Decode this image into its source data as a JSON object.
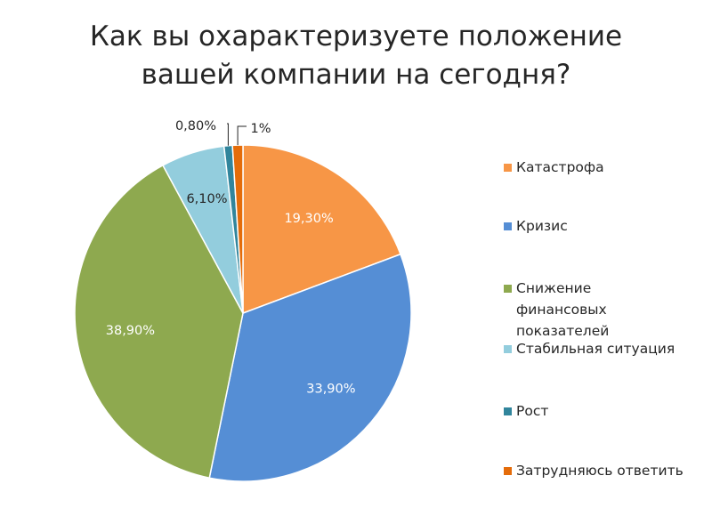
{
  "title_lines": [
    "Как вы охарактеризуете положение",
    "вашей компании на сегодня?"
  ],
  "chart_data": {
    "type": "pie",
    "title": "Как вы охарактеризуете положение вашей компании на сегодня?",
    "categories": [
      "Катастрофа",
      "Кризис",
      "Снижение финансовых показателей",
      "Стабильная ситуация",
      "Рост",
      "Затрудняюсь ответить"
    ],
    "values": [
      19.3,
      33.9,
      38.9,
      6.1,
      0.8,
      1.0
    ],
    "data_labels": [
      "19,30%",
      "33,90%",
      "38,90%",
      "6,10%",
      "0,80%",
      "1%"
    ],
    "colors": [
      "#F79646",
      "#558ED5",
      "#8EA94F",
      "#93CDDD",
      "#31859C",
      "#E46C0A"
    ],
    "label_colors": [
      "#ffffff",
      "#ffffff",
      "#ffffff",
      "#262626",
      "#262626",
      "#262626"
    ],
    "legend_position": "right"
  }
}
